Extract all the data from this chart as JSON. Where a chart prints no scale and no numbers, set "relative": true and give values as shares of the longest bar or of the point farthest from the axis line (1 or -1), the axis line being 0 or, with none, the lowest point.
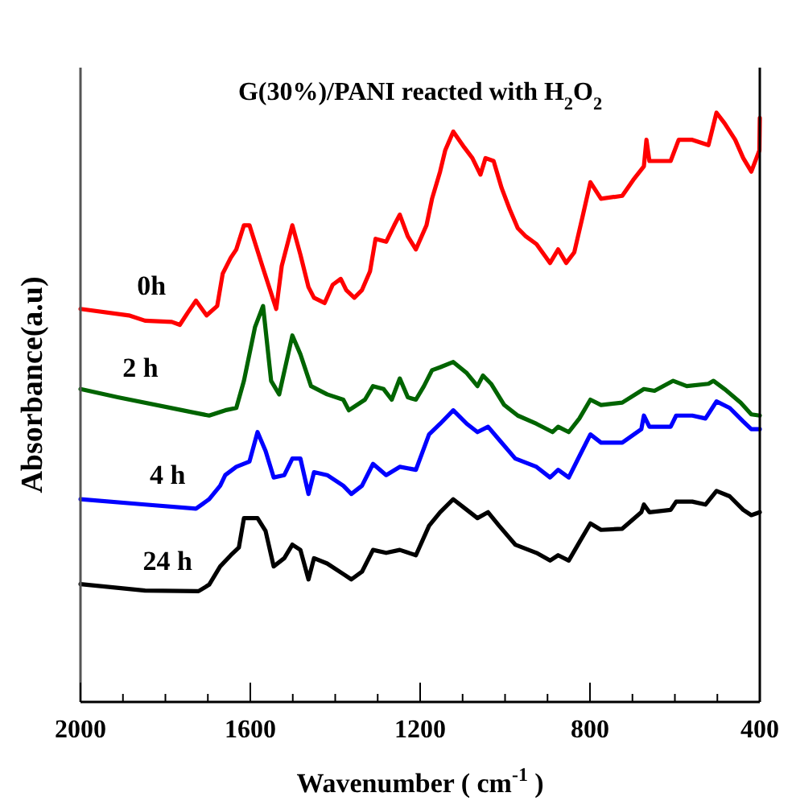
{
  "chart_data": {
    "type": "line",
    "title": "G(30%)/PANI reacted with H$_{2}$O$_{2}$",
    "xlabel": "Wavenumber ( cm$^{-1}$ )",
    "ylabel": "Absorbance(a.u)",
    "relative": true,
    "xlim": [
      2000,
      400
    ],
    "xticks": [
      2000,
      {
        "value": 1900,
        "label": null
      },
      {
        "value": 1800,
        "label": null
      },
      {
        "value": 1700,
        "label": null
      },
      1600,
      {
        "value": 1500,
        "label": null
      },
      {
        "value": 1400,
        "label": null
      },
      {
        "value": 1300,
        "label": null
      },
      1200,
      {
        "value": 1100,
        "label": null
      },
      {
        "value": 1000,
        "label": null
      },
      {
        "value": 900,
        "label": null
      },
      800,
      {
        "value": 700,
        "label": null
      },
      {
        "value": 600,
        "label": null
      },
      {
        "value": 500,
        "label": null
      },
      400
    ],
    "series": [
      {
        "name": "0h",
        "color": "#ff0000",
        "x": [
          2000,
          1886,
          1848,
          1785,
          1766,
          1747,
          1728,
          1703,
          1678,
          1665,
          1646,
          1633,
          1615,
          1602,
          1570,
          1539,
          1526,
          1501,
          1482,
          1463,
          1450,
          1425,
          1406,
          1387,
          1374,
          1355,
          1337,
          1318,
          1305,
          1280,
          1261,
          1248,
          1229,
          1210,
          1185,
          1172,
          1153,
          1141,
          1122,
          1096,
          1077,
          1058,
          1046,
          1027,
          1008,
          989,
          970,
          951,
          926,
          894,
          875,
          856,
          837,
          818,
          799,
          774,
          724,
          698,
          673,
          667,
          660,
          610,
          591,
          559,
          521,
          502,
          483,
          458,
          439,
          420,
          401,
          400
        ],
        "values": [
          0.667,
          0.656,
          0.647,
          0.645,
          0.64,
          0.661,
          0.681,
          0.656,
          0.672,
          0.727,
          0.754,
          0.768,
          0.809,
          0.809,
          0.736,
          0.667,
          0.74,
          0.809,
          0.759,
          0.704,
          0.686,
          0.677,
          0.708,
          0.718,
          0.699,
          0.686,
          0.699,
          0.731,
          0.786,
          0.781,
          0.809,
          0.827,
          0.79,
          0.768,
          0.809,
          0.854,
          0.9,
          0.936,
          0.968,
          0.941,
          0.923,
          0.895,
          0.923,
          0.918,
          0.872,
          0.836,
          0.804,
          0.79,
          0.777,
          0.745,
          0.768,
          0.745,
          0.763,
          0.822,
          0.882,
          0.854,
          0.859,
          0.886,
          0.909,
          0.954,
          0.918,
          0.918,
          0.954,
          0.954,
          0.945,
          1.0,
          0.982,
          0.954,
          0.923,
          0.9,
          0.936,
          0.991
        ]
      },
      {
        "name": "2 h",
        "color": "#006400",
        "x": [
          2000,
          1912,
          1760,
          1697,
          1659,
          1633,
          1615,
          1589,
          1570,
          1551,
          1532,
          1501,
          1482,
          1457,
          1419,
          1381,
          1368,
          1330,
          1311,
          1286,
          1267,
          1248,
          1229,
          1210,
          1191,
          1172,
          1153,
          1122,
          1090,
          1065,
          1052,
          1033,
          1002,
          970,
          926,
          888,
          875,
          850,
          825,
          799,
          774,
          724,
          673,
          648,
          604,
          572,
          521,
          509,
          483,
          445,
          420,
          400
        ],
        "values": [
          0.531,
          0.517,
          0.495,
          0.486,
          0.495,
          0.499,
          0.545,
          0.636,
          0.672,
          0.545,
          0.522,
          0.622,
          0.59,
          0.536,
          0.522,
          0.513,
          0.495,
          0.513,
          0.536,
          0.531,
          0.513,
          0.549,
          0.517,
          0.513,
          0.536,
          0.563,
          0.568,
          0.577,
          0.558,
          0.536,
          0.554,
          0.54,
          0.504,
          0.486,
          0.472,
          0.458,
          0.467,
          0.458,
          0.481,
          0.513,
          0.504,
          0.508,
          0.531,
          0.528,
          0.545,
          0.536,
          0.54,
          0.545,
          0.531,
          0.508,
          0.488,
          0.486
        ]
      },
      {
        "name": "4 h",
        "color": "#0000ff",
        "x": [
          2000,
          1848,
          1728,
          1697,
          1671,
          1659,
          1633,
          1602,
          1583,
          1564,
          1545,
          1520,
          1501,
          1482,
          1463,
          1450,
          1419,
          1381,
          1362,
          1337,
          1311,
          1280,
          1248,
          1210,
          1179,
          1153,
          1122,
          1090,
          1065,
          1040,
          1014,
          976,
          926,
          894,
          875,
          850,
          825,
          799,
          774,
          724,
          679,
          673,
          660,
          610,
          597,
          559,
          528,
          502,
          471,
          439,
          420,
          400
        ],
        "values": [
          0.344,
          0.335,
          0.328,
          0.344,
          0.367,
          0.385,
          0.399,
          0.408,
          0.458,
          0.426,
          0.381,
          0.385,
          0.413,
          0.413,
          0.353,
          0.39,
          0.385,
          0.367,
          0.353,
          0.367,
          0.404,
          0.385,
          0.399,
          0.394,
          0.454,
          0.472,
          0.495,
          0.472,
          0.458,
          0.467,
          0.445,
          0.413,
          0.399,
          0.381,
          0.394,
          0.381,
          0.417,
          0.454,
          0.44,
          0.44,
          0.463,
          0.486,
          0.467,
          0.467,
          0.486,
          0.486,
          0.481,
          0.51,
          0.499,
          0.476,
          0.463,
          0.463
        ]
      },
      {
        "name": "24 h",
        "color": "#000000",
        "x": [
          2000,
          1848,
          1722,
          1697,
          1671,
          1646,
          1627,
          1615,
          1583,
          1564,
          1545,
          1520,
          1501,
          1482,
          1463,
          1450,
          1419,
          1381,
          1362,
          1337,
          1311,
          1280,
          1248,
          1210,
          1179,
          1153,
          1122,
          1090,
          1065,
          1040,
          1014,
          976,
          926,
          894,
          875,
          850,
          825,
          799,
          774,
          724,
          679,
          673,
          660,
          610,
          597,
          559,
          528,
          502,
          471,
          439,
          420,
          400
        ],
        "values": [
          0.2,
          0.189,
          0.188,
          0.199,
          0.23,
          0.249,
          0.262,
          0.312,
          0.312,
          0.29,
          0.23,
          0.244,
          0.267,
          0.258,
          0.208,
          0.244,
          0.235,
          0.217,
          0.208,
          0.221,
          0.258,
          0.253,
          0.258,
          0.249,
          0.299,
          0.322,
          0.344,
          0.326,
          0.312,
          0.322,
          0.299,
          0.267,
          0.253,
          0.24,
          0.249,
          0.24,
          0.271,
          0.303,
          0.292,
          0.294,
          0.322,
          0.335,
          0.322,
          0.326,
          0.34,
          0.34,
          0.335,
          0.358,
          0.349,
          0.326,
          0.317,
          0.322
        ]
      }
    ]
  }
}
